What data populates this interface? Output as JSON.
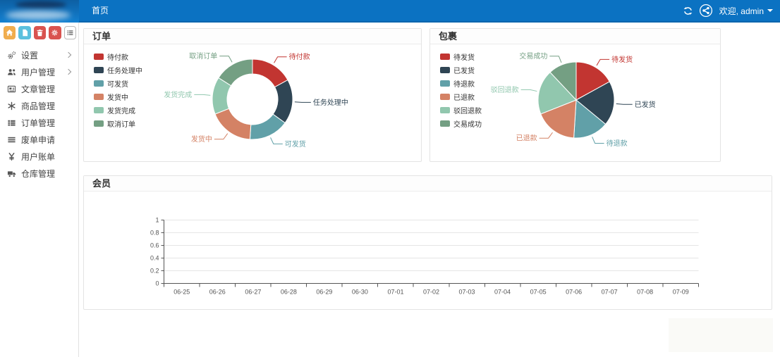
{
  "topbar": {
    "nav_items": [
      {
        "label": "首页"
      }
    ],
    "welcome_text": "欢迎, admin"
  },
  "sidebar": {
    "toolbar_buttons": [
      {
        "key": "home",
        "icon": "home",
        "color": "#f0ad4e"
      },
      {
        "key": "file",
        "icon": "file",
        "color": "#5bc0de"
      },
      {
        "key": "trash",
        "icon": "trash",
        "color": "#d9534f"
      },
      {
        "key": "gear",
        "icon": "gear",
        "color": "#d9534f"
      },
      {
        "key": "list",
        "icon": "list",
        "color": "#ffffff"
      }
    ],
    "menu_items": [
      {
        "key": "settings",
        "label": "设置",
        "icon": "gears",
        "expandable": true
      },
      {
        "key": "user-management",
        "label": "用户管理",
        "icon": "users",
        "expandable": true
      },
      {
        "key": "article-management",
        "label": "文章管理",
        "icon": "article",
        "expandable": false
      },
      {
        "key": "goods-management",
        "label": "商品管理",
        "icon": "goods",
        "expandable": false
      },
      {
        "key": "order-management",
        "label": "订单管理",
        "icon": "orders",
        "expandable": false
      },
      {
        "key": "void-order-request",
        "label": "废单申请",
        "icon": "menu",
        "expandable": false
      },
      {
        "key": "user-bills",
        "label": "用户账单",
        "icon": "yen",
        "expandable": false
      },
      {
        "key": "warehouse-management",
        "label": "仓库管理",
        "icon": "truck",
        "expandable": false
      }
    ]
  },
  "chart_data": [
    {
      "type": "pie",
      "variant": "donut",
      "title": "订单",
      "labels": [
        "待付款",
        "任务处理中",
        "可发货",
        "发货中",
        "发货完成",
        "取消订单"
      ],
      "values": [
        17,
        18,
        16,
        18,
        15,
        16
      ],
      "colors": [
        "#c23531",
        "#2f4554",
        "#61a0a8",
        "#d48265",
        "#91c7ae",
        "#749f83"
      ],
      "legend_position": "top-left"
    },
    {
      "type": "pie",
      "variant": "solid",
      "title": "包裹",
      "labels": [
        "待发货",
        "已发货",
        "待退款",
        "已退款",
        "驳回退款",
        "交易成功"
      ],
      "values": [
        17,
        19,
        15,
        18,
        19,
        12
      ],
      "colors": [
        "#c23531",
        "#2f4554",
        "#61a0a8",
        "#d48265",
        "#91c7ae",
        "#749f83"
      ],
      "legend_position": "top-left"
    },
    {
      "type": "line",
      "title": "会员",
      "categories": [
        "06-25",
        "06-26",
        "06-27",
        "06-28",
        "06-29",
        "06-30",
        "07-01",
        "07-02",
        "07-03",
        "07-04",
        "07-05",
        "07-06",
        "07-07",
        "07-08",
        "07-09"
      ],
      "series": [],
      "ylim": [
        0,
        1
      ],
      "yticks": [
        "0",
        "0.2",
        "0.4",
        "0.6",
        "0.8",
        "1"
      ],
      "grid": true,
      "legend": false
    }
  ]
}
